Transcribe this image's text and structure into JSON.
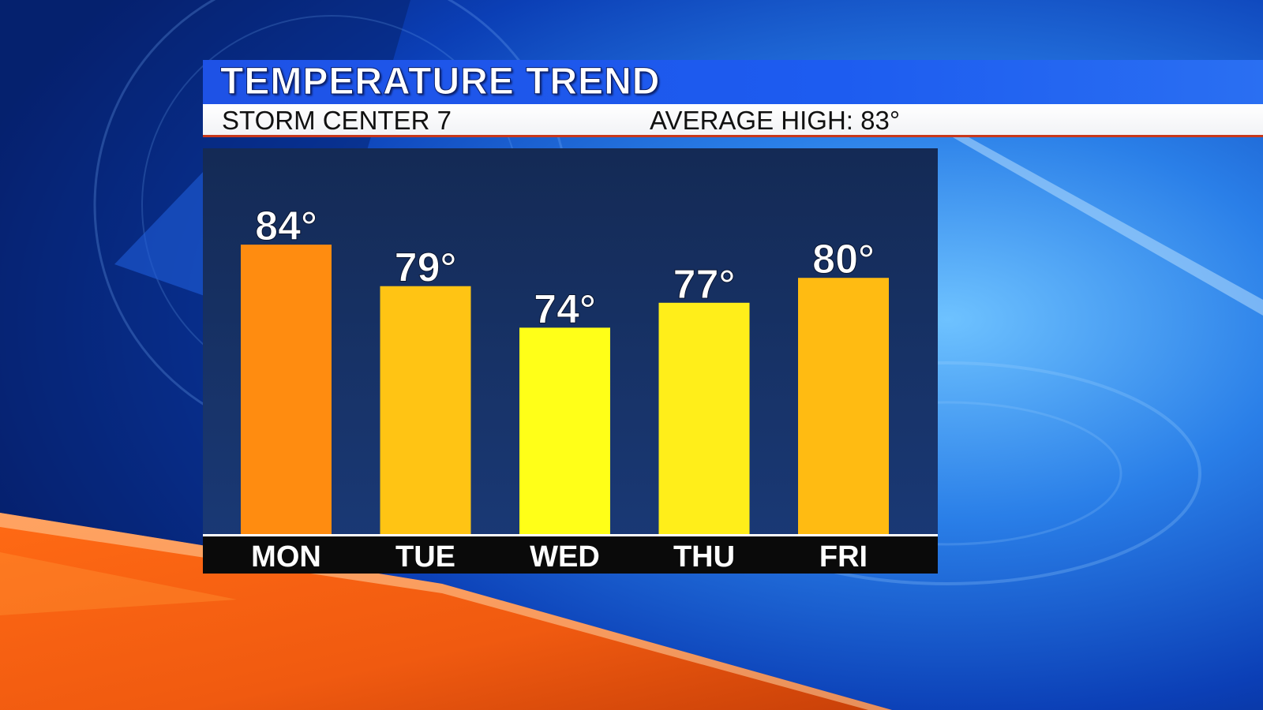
{
  "header": {
    "title": "TEMPERATURE TREND",
    "station": "STORM CENTER 7",
    "average_high": "AVERAGE HIGH: 83°"
  },
  "colors": {
    "title_bar": "#1e52e6",
    "panel": "#16306a",
    "axis_strip": "#0a0a0a",
    "hot": "#ff8c10",
    "warm": "#ffc414",
    "mild": "#ffe418",
    "cool": "#ffff18"
  },
  "chart_data": {
    "type": "bar",
    "categories": [
      "MON",
      "TUE",
      "WED",
      "THU",
      "FRI"
    ],
    "values": [
      84,
      79,
      74,
      77,
      80
    ],
    "value_labels": [
      "84°",
      "79°",
      "74°",
      "77°",
      "80°"
    ],
    "bar_colors": [
      "#ff8c10",
      "#ffc414",
      "#ffff18",
      "#ffee1a",
      "#ffbb12"
    ],
    "ylim": [
      50,
      88
    ],
    "grid": false,
    "legend": "none"
  }
}
